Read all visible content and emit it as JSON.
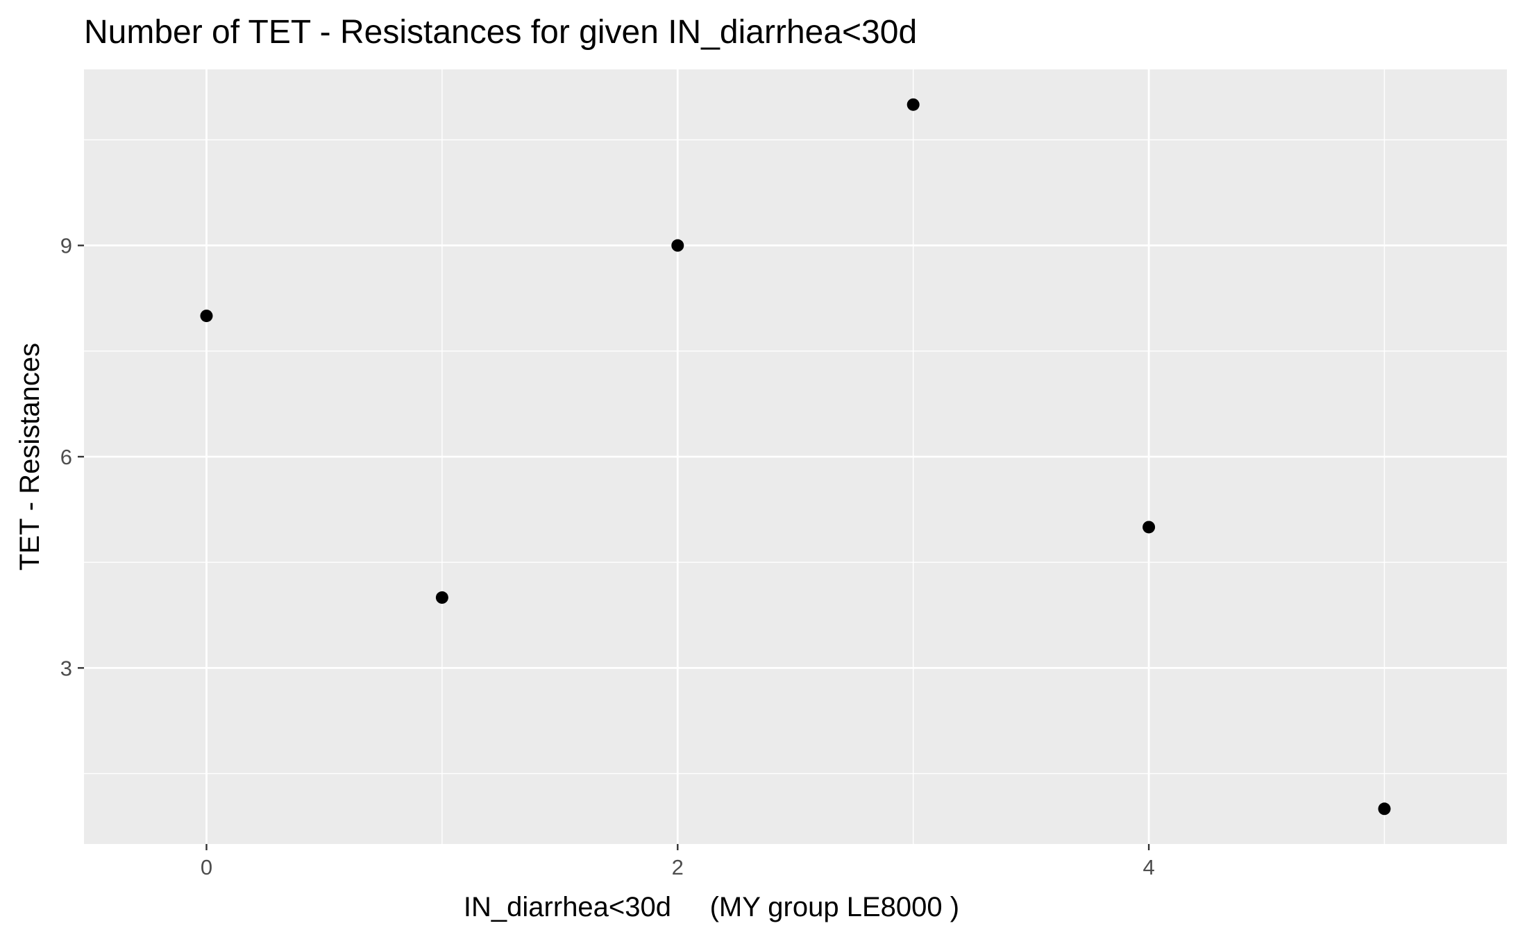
{
  "chart_data": {
    "type": "scatter",
    "title": "Number of TET - Resistances for given IN_diarrhea<30d",
    "xlabel": "IN_diarrhea<30d     (MY group LE8000 )",
    "ylabel": "TET - Resistances",
    "x": [
      0,
      1,
      2,
      3,
      4,
      5
    ],
    "y": [
      8,
      4,
      9,
      11,
      5,
      1
    ],
    "xlim": [
      -0.52,
      5.52
    ],
    "ylim": [
      0.5,
      11.5
    ],
    "x_ticks": [
      0,
      2,
      4
    ],
    "x_tick_labels": [
      "0",
      "2",
      "4"
    ],
    "x_minor_ticks": [
      1,
      3,
      5
    ],
    "y_ticks": [
      3,
      6,
      9
    ],
    "y_tick_labels": [
      "3",
      "6",
      "9"
    ],
    "y_minor_ticks": [
      1.5,
      4.5,
      7.5,
      10.5
    ],
    "grid": true,
    "legend": "none",
    "colors": {
      "panel_background": "#ebebeb",
      "grid_major": "#ffffff",
      "grid_minor": "#ffffff",
      "point": "#000000",
      "tick_label": "#4d4d4d",
      "tick_mark": "#333333"
    }
  }
}
